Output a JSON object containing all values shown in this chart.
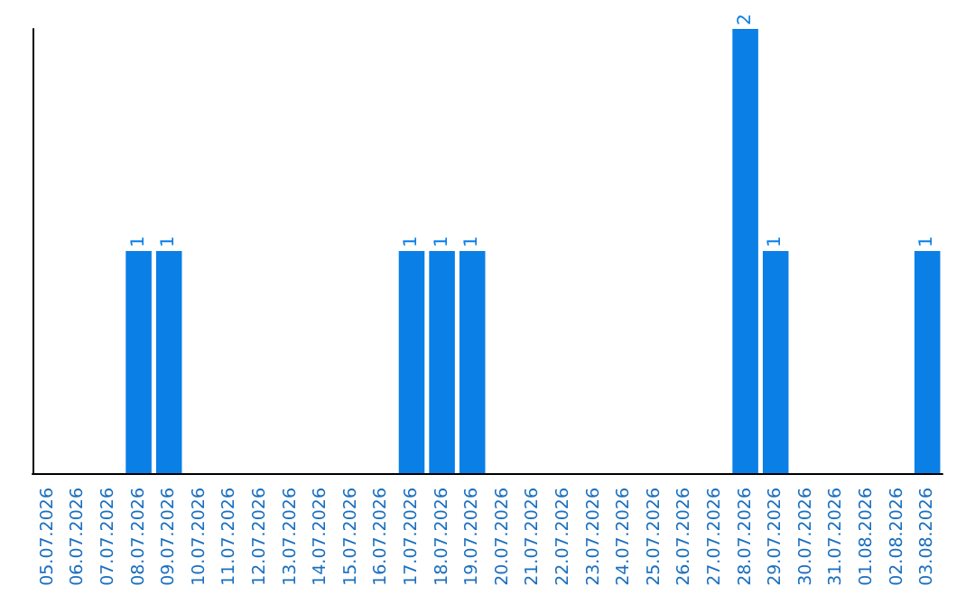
{
  "chart_data": {
    "type": "bar",
    "color": "#0a7fe6",
    "categories": [
      "05.07.2026",
      "06.07.2026",
      "07.07.2026",
      "08.07.2026",
      "09.07.2026",
      "10.07.2026",
      "11.07.2026",
      "12.07.2026",
      "13.07.2026",
      "14.07.2026",
      "15.07.2026",
      "16.07.2026",
      "17.07.2026",
      "18.07.2026",
      "19.07.2026",
      "20.07.2026",
      "21.07.2026",
      "22.07.2026",
      "23.07.2026",
      "24.07.2026",
      "25.07.2026",
      "26.07.2026",
      "27.07.2026",
      "28.07.2026",
      "29.07.2026",
      "30.07.2026",
      "31.07.2026",
      "01.08.2026",
      "02.08.2026",
      "03.08.2026"
    ],
    "values": [
      0,
      0,
      0,
      1,
      1,
      0,
      0,
      0,
      0,
      0,
      0,
      0,
      1,
      1,
      1,
      0,
      0,
      0,
      0,
      0,
      0,
      0,
      0,
      2,
      1,
      0,
      0,
      0,
      0,
      1
    ],
    "value_labels": [
      null,
      null,
      null,
      "1",
      "1",
      null,
      null,
      null,
      null,
      null,
      null,
      null,
      "1",
      "1",
      "1",
      null,
      null,
      null,
      null,
      null,
      null,
      null,
      null,
      "2",
      "1",
      null,
      null,
      null,
      null,
      "1"
    ],
    "grid": false
  }
}
